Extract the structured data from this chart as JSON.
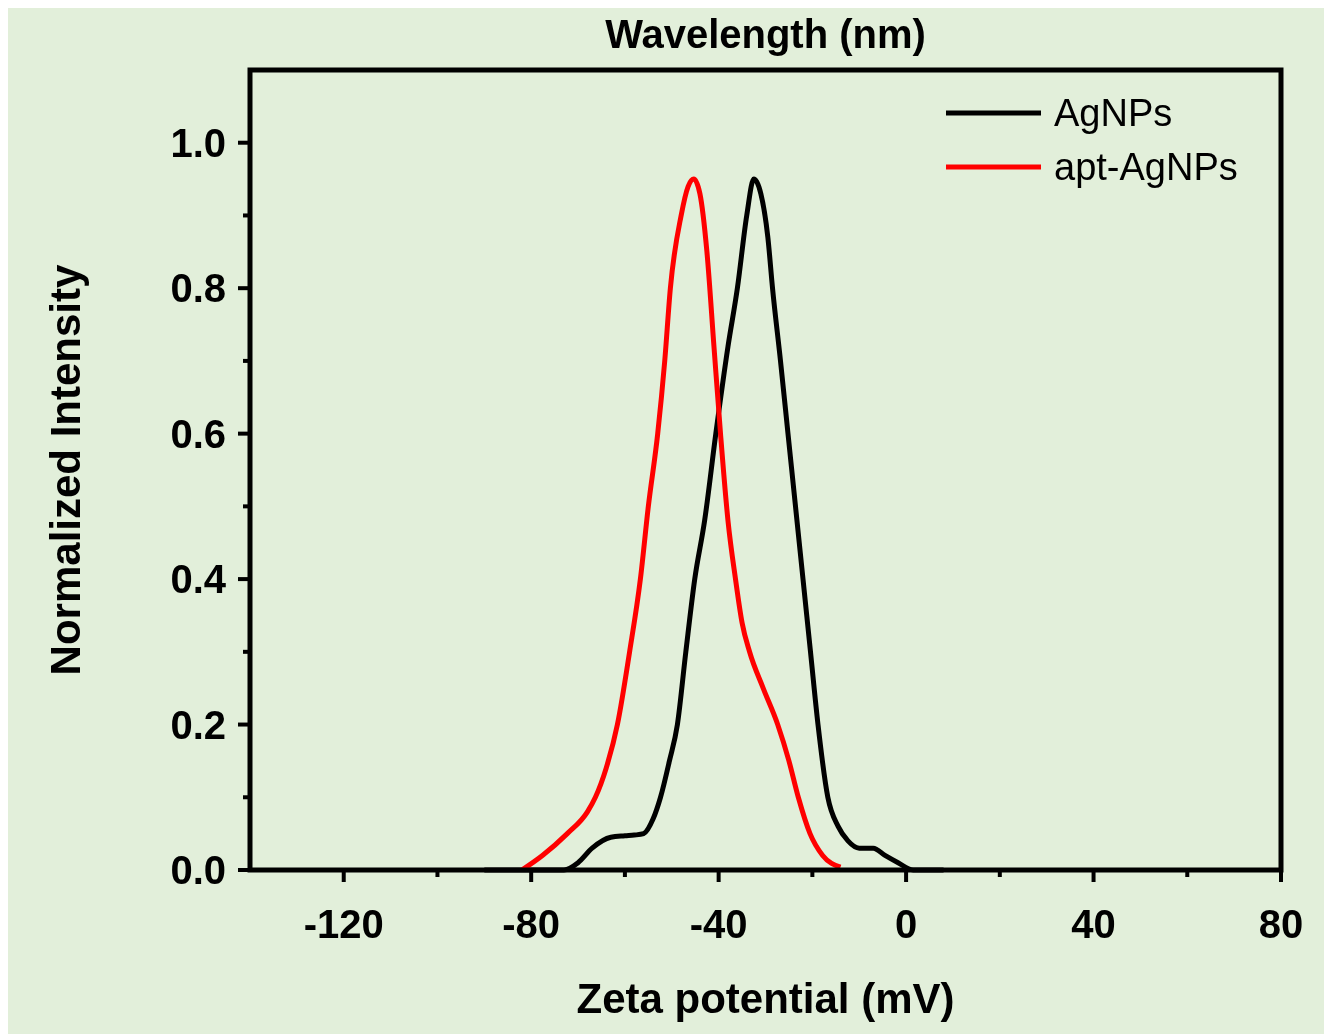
{
  "chart_data": {
    "type": "line",
    "xlabel": "Zeta potential (mV)",
    "ylabel": "Normalized Intensity",
    "annotations": [
      "Wavelength (nm)"
    ],
    "xlim": [
      -140,
      80
    ],
    "xticks": [
      -120,
      -80,
      -40,
      0,
      40,
      80
    ],
    "ylim": [
      0,
      1.1
    ],
    "yticks": [
      {
        "value": 0,
        "label": "0.0"
      },
      0.2,
      0.4,
      0.6,
      0.8,
      {
        "value": 1,
        "label": "1.0"
      }
    ],
    "grid": false,
    "legend": "top right",
    "marker": "none",
    "line_style": "solid",
    "series": [
      {
        "name": "AgNPs",
        "color": "#000000",
        "x": [
          -90,
          -80,
          -73,
          -70,
          -67,
          -63,
          -60,
          -58,
          -56,
          -54,
          -52.4,
          -50.5,
          -48.8,
          -47,
          -45.1,
          -43,
          -40.6,
          -38,
          -36,
          -34,
          -32.5,
          -31,
          -29.5,
          -28.5,
          -26.8,
          -25.2,
          -23.6,
          -22,
          -20.4,
          -18.8,
          -16.7,
          -14.5,
          -12.4,
          -10,
          -7,
          -4.5,
          -1.7,
          1.5,
          8
        ],
        "values": [
          0,
          0,
          0,
          0.01,
          0.03,
          0.045,
          0.047,
          0.048,
          0.05,
          0.07,
          0.1,
          0.15,
          0.2,
          0.3,
          0.4,
          0.48,
          0.6,
          0.72,
          0.8,
          0.9,
          0.95,
          0.93,
          0.87,
          0.8,
          0.7,
          0.6,
          0.5,
          0.4,
          0.3,
          0.2,
          0.1,
          0.06,
          0.04,
          0.03,
          0.03,
          0.02,
          0.01,
          0,
          0
        ]
      },
      {
        "name": "apt-AgNPs",
        "color": "#ff0000",
        "x": [
          -82,
          -77.6,
          -72.3,
          -68,
          -66.3,
          -64,
          -61.6,
          -59,
          -56.7,
          -55,
          -53,
          -51.5,
          -50.3,
          -48,
          -46.5,
          -45.3,
          -44,
          -42.5,
          -41,
          -39.6,
          -38,
          -36.4,
          -35,
          -33.4,
          -30.5,
          -27.4,
          -25,
          -23,
          -20.5,
          -17.8,
          -14
        ],
        "values": [
          0,
          0.02,
          0.05,
          0.08,
          0.1,
          0.14,
          0.2,
          0.3,
          0.4,
          0.5,
          0.6,
          0.7,
          0.8,
          0.9,
          0.94,
          0.95,
          0.93,
          0.85,
          0.72,
          0.6,
          0.48,
          0.4,
          0.34,
          0.3,
          0.25,
          0.2,
          0.15,
          0.1,
          0.05,
          0.02,
          0.004
        ]
      }
    ]
  }
}
